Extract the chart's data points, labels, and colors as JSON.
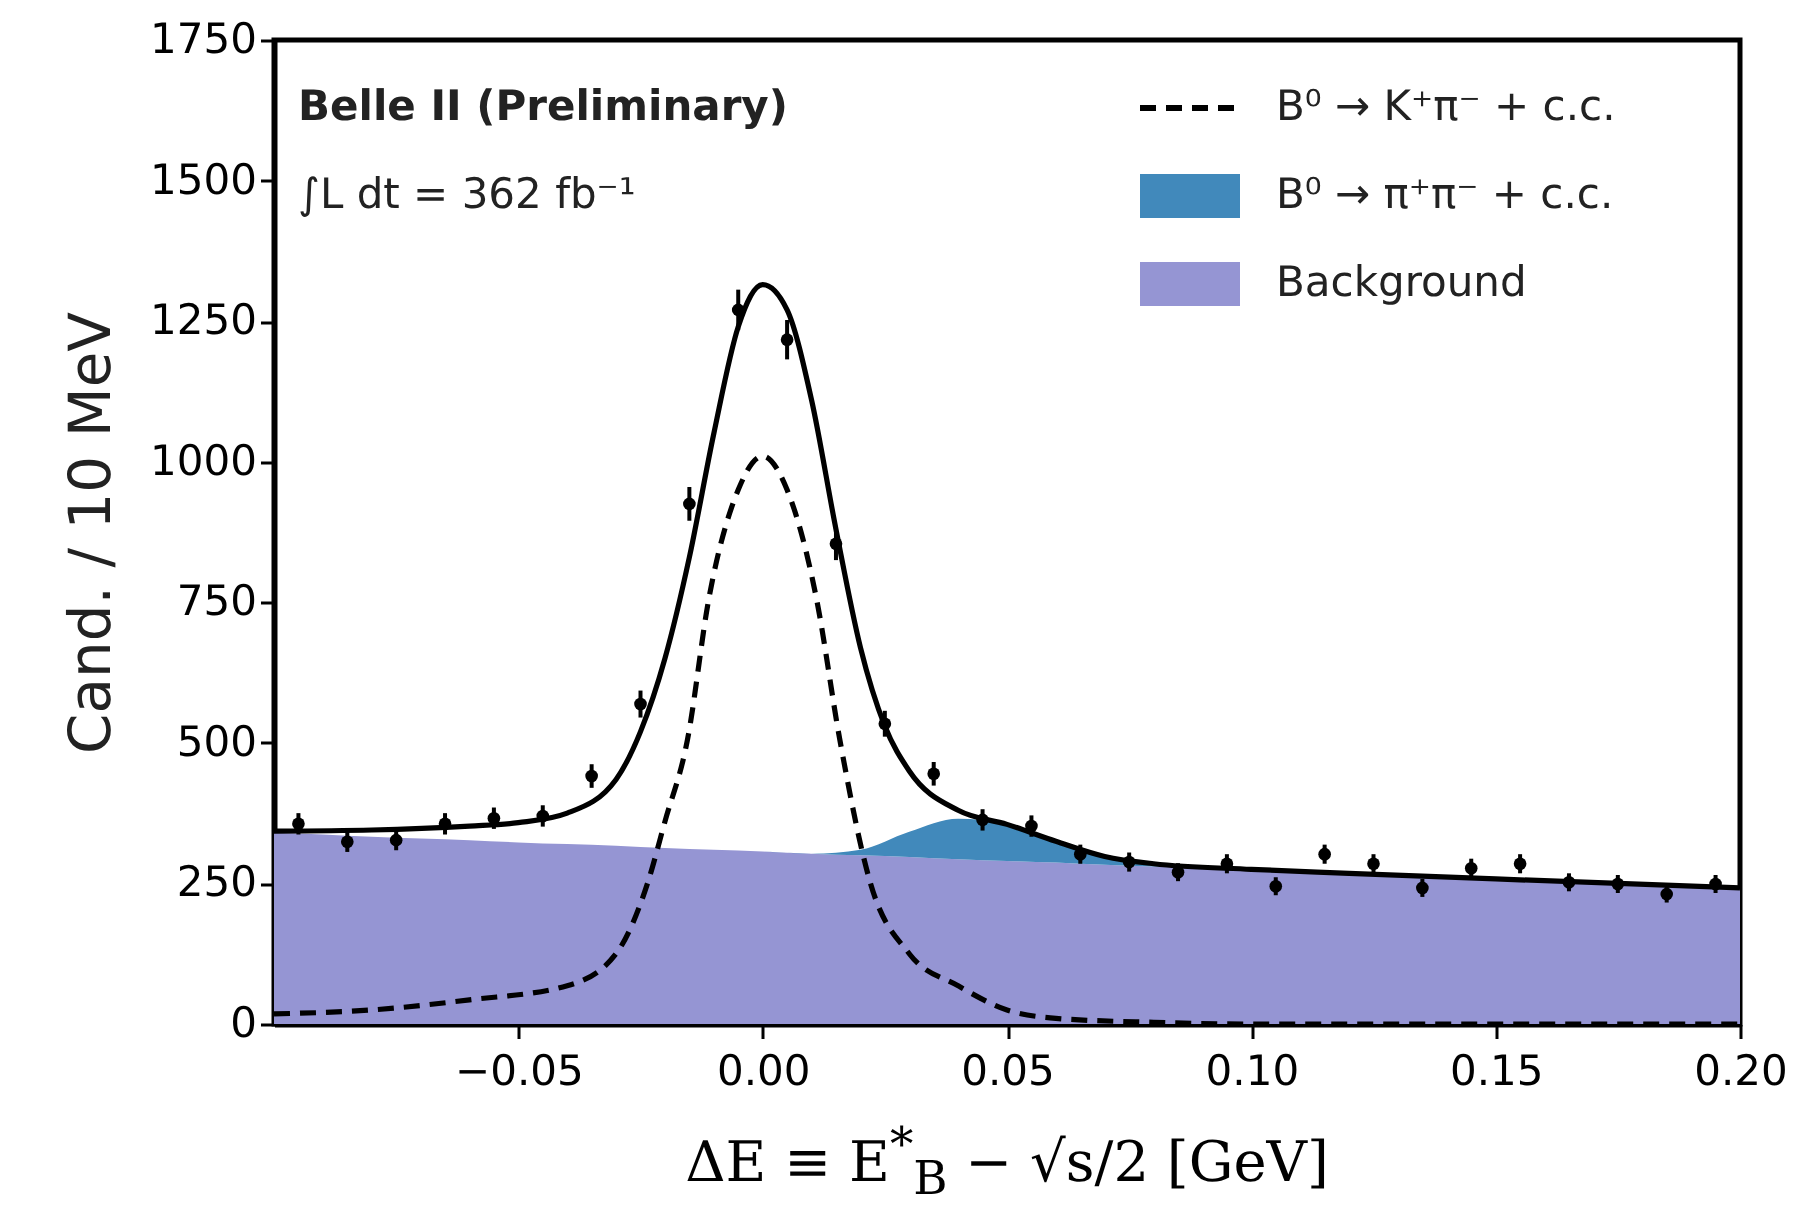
{
  "chart_data": {
    "type": "line",
    "xlabel": "ΔE ≡ E$^{*}$$_{B}$ − √s/2 [GeV]",
    "ylabel": "Cand. / 10 MeV",
    "annotations": [
      "Belle II (Preliminary)",
      "∫L dt = 362 fb⁻¹"
    ],
    "xlim": [
      -0.1,
      0.2
    ],
    "xticks": [
      {
        "value": -0.05,
        "label": "−0.05"
      },
      {
        "value": 0,
        "label": "0.00"
      },
      {
        "value": 0.05,
        "label": "0.05"
      },
      {
        "value": 0.1,
        "label": "0.10"
      },
      {
        "value": 0.15,
        "label": "0.15"
      },
      {
        "value": 0.2,
        "label": "0.20"
      }
    ],
    "ylim": [
      0,
      1750
    ],
    "yticks": [
      0,
      250,
      500,
      750,
      1000,
      1250,
      1500,
      1750
    ],
    "grid": false,
    "legend": "top right",
    "stacked": true,
    "series": [
      {
        "type": "area",
        "name": "Background",
        "color": "#9595d3",
        "x": [
          -0.1,
          -0.09,
          -0.08,
          -0.07,
          -0.06,
          -0.05,
          -0.04,
          -0.03,
          -0.02,
          -0.01,
          0,
          0.01,
          0.02,
          0.03,
          0.04,
          0.05,
          0.06,
          0.07,
          0.08,
          0.09,
          0.1,
          0.11,
          0.12,
          0.13,
          0.14,
          0.15,
          0.16,
          0.17,
          0.18,
          0.19,
          0.2
        ],
        "values": [
          340,
          337,
          333,
          330,
          327,
          323,
          320,
          317,
          313,
          310,
          307,
          303,
          300,
          297,
          293,
          290,
          287,
          283,
          280,
          277,
          273,
          270,
          267,
          263,
          260,
          257,
          253,
          250,
          247,
          243,
          240
        ]
      },
      {
        "type": "area",
        "name": "B⁰ → π⁺π⁻ + c.c.",
        "color": "#4189bb",
        "x": [
          -0.1,
          -0.09,
          -0.08,
          -0.07,
          -0.06,
          -0.05,
          -0.04,
          -0.03,
          -0.02,
          -0.01,
          0,
          0.01,
          0.02,
          0.03,
          0.04,
          0.05,
          0.06,
          0.07,
          0.08,
          0.09,
          0.1,
          0.11,
          0.12,
          0.13,
          0.14,
          0.15,
          0.16,
          0.17,
          0.18,
          0.19,
          0.2
        ],
        "values": [
          0,
          0,
          0,
          0,
          0,
          0,
          0,
          0,
          0,
          0,
          0,
          0,
          10,
          45,
          72,
          66,
          36,
          12,
          2,
          0,
          0,
          0,
          0,
          0,
          0,
          0,
          0,
          0,
          0,
          0,
          0
        ]
      },
      {
        "type": "line",
        "name": "B⁰ → K⁺π⁻ + c.c.",
        "color": "#000000",
        "line_style": "dashed",
        "x": [
          -0.1,
          -0.08,
          -0.06,
          -0.04,
          -0.03,
          -0.0235,
          -0.02,
          -0.0154,
          -0.011,
          -0.005,
          0,
          0.005,
          0.011,
          0.0158,
          0.022,
          0.03,
          0.04,
          0.05,
          0.06,
          0.08,
          0.1,
          0.2
        ],
        "values": [
          18,
          25,
          43,
          68,
          125,
          252,
          360,
          505,
          757,
          950,
          1010,
          950,
          757,
          505,
          252,
          125,
          68,
          25,
          10,
          3,
          0,
          0
        ]
      },
      {
        "type": "line",
        "color": "#000000",
        "line_style": "solid",
        "x": [
          -0.1,
          -0.08,
          -0.06,
          -0.05,
          -0.04,
          -0.03,
          -0.025,
          -0.02,
          -0.015,
          -0.01,
          -0.005,
          0,
          0.005,
          0.01,
          0.015,
          0.02,
          0.025,
          0.03,
          0.04,
          0.05,
          0.06,
          0.07,
          0.08,
          0.1,
          0.12,
          0.15,
          0.2
        ],
        "values": [
          343,
          345,
          352,
          358,
          375,
          435,
          520,
          650,
          830,
          1050,
          1240,
          1315,
          1270,
          1110,
          880,
          670,
          530,
          450,
          380,
          355,
          325,
          298,
          285,
          275,
          268,
          258,
          242
        ]
      },
      {
        "type": "scatter",
        "color": "#000000",
        "marker": "circle",
        "x": [
          -0.095,
          -0.085,
          -0.075,
          -0.065,
          -0.055,
          -0.045,
          -0.035,
          -0.025,
          -0.015,
          -0.005,
          0.005,
          0.015,
          0.025,
          0.035,
          0.045,
          0.055,
          0.065,
          0.075,
          0.085,
          0.095,
          0.105,
          0.115,
          0.125,
          0.135,
          0.145,
          0.155,
          0.165,
          0.175,
          0.185,
          0.195
        ],
        "values": [
          356,
          324,
          327,
          356,
          366,
          370,
          441,
          569,
          925,
          1270,
          1217,
          854,
          534,
          445,
          363,
          352,
          302,
          288,
          270,
          285,
          245,
          302,
          285,
          242,
          277,
          285,
          252,
          249,
          231,
          249
        ],
        "errors": [
          19,
          18,
          18,
          19,
          19,
          19,
          21,
          24,
          30,
          36,
          35,
          29,
          23,
          21,
          19,
          19,
          17,
          17,
          16,
          17,
          16,
          17,
          17,
          16,
          17,
          17,
          16,
          16,
          15,
          16
        ]
      }
    ]
  }
}
